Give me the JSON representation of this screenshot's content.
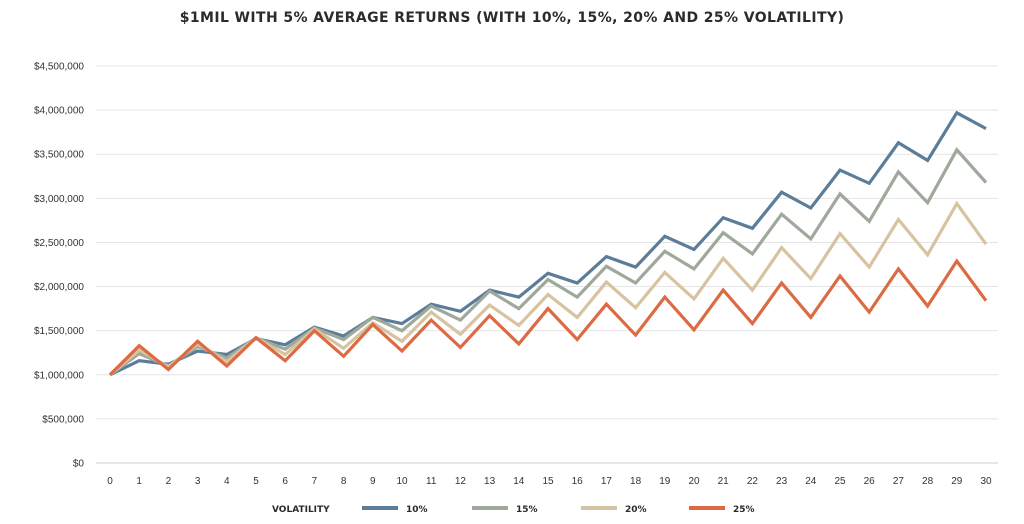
{
  "chart_data": {
    "type": "line",
    "title": "$1MIL WITH 5% AVERAGE RETURNS (WITH 10%, 15%, 20% AND 25% VOLATILITY)",
    "xlabel": "",
    "ylabel": "",
    "x": [
      0,
      1,
      2,
      3,
      4,
      5,
      6,
      7,
      8,
      9,
      10,
      11,
      12,
      13,
      14,
      15,
      16,
      17,
      18,
      19,
      20,
      21,
      22,
      23,
      24,
      25,
      26,
      27,
      28,
      29,
      30
    ],
    "ylim": [
      0,
      4500000
    ],
    "y_ticks": [
      0,
      500000,
      1000000,
      1500000,
      2000000,
      2500000,
      3000000,
      3500000,
      4000000,
      4500000
    ],
    "y_tick_labels": [
      "$0",
      "$500,000",
      "$1,000,000",
      "$1,500,000",
      "$2,000,000",
      "$2,500,000",
      "$3,000,000",
      "$3,500,000",
      "$4,000,000",
      "$4,500,000"
    ],
    "grid": "horizontal",
    "legend_title": "VOLATILITY",
    "legend_position": "bottom",
    "series": [
      {
        "name": "10%",
        "color": "#5b7d99",
        "values": [
          1000000,
          1160000,
          1120000,
          1270000,
          1230000,
          1410000,
          1340000,
          1540000,
          1440000,
          1650000,
          1580000,
          1800000,
          1720000,
          1960000,
          1880000,
          2150000,
          2040000,
          2340000,
          2220000,
          2570000,
          2420000,
          2780000,
          2660000,
          3070000,
          2890000,
          3320000,
          3170000,
          3630000,
          3430000,
          3970000,
          3790000
        ]
      },
      {
        "name": "15%",
        "color": "#9ea89b",
        "values": [
          1000000,
          1240000,
          1100000,
          1320000,
          1190000,
          1420000,
          1290000,
          1530000,
          1400000,
          1650000,
          1500000,
          1780000,
          1620000,
          1950000,
          1750000,
          2080000,
          1880000,
          2230000,
          2040000,
          2400000,
          2200000,
          2610000,
          2370000,
          2820000,
          2540000,
          3050000,
          2740000,
          3300000,
          2950000,
          3550000,
          3180000
        ]
      },
      {
        "name": "20%",
        "color": "#d8c3a0",
        "values": [
          1000000,
          1280000,
          1090000,
          1350000,
          1150000,
          1420000,
          1230000,
          1520000,
          1300000,
          1590000,
          1380000,
          1710000,
          1460000,
          1790000,
          1560000,
          1910000,
          1650000,
          2050000,
          1760000,
          2160000,
          1860000,
          2320000,
          1960000,
          2440000,
          2090000,
          2600000,
          2220000,
          2760000,
          2360000,
          2940000,
          2480000
        ]
      },
      {
        "name": "25%",
        "color": "#dc6a43",
        "values": [
          1000000,
          1330000,
          1060000,
          1380000,
          1100000,
          1420000,
          1160000,
          1500000,
          1210000,
          1570000,
          1270000,
          1620000,
          1310000,
          1670000,
          1350000,
          1750000,
          1400000,
          1800000,
          1450000,
          1880000,
          1510000,
          1960000,
          1580000,
          2040000,
          1650000,
          2120000,
          1710000,
          2200000,
          1780000,
          2290000,
          1840000
        ]
      }
    ]
  }
}
